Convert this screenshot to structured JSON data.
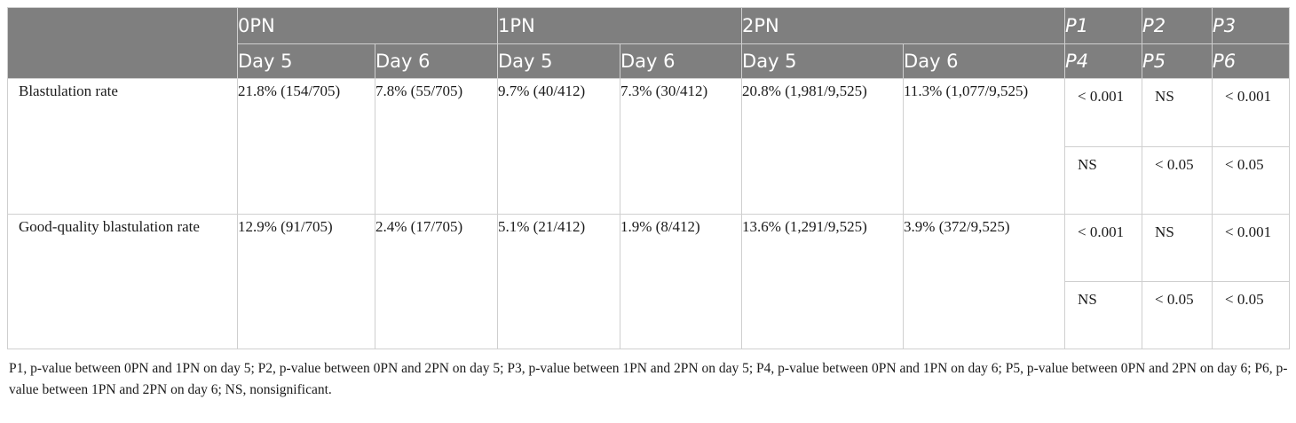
{
  "table": {
    "header": {
      "groups": [
        "0PN",
        "1PN",
        "2PN"
      ],
      "days": [
        "Day 5",
        "Day 6"
      ],
      "p_top": [
        "P1",
        "P2",
        "P3"
      ],
      "p_bottom": [
        "P4",
        "P5",
        "P6"
      ]
    },
    "rows": [
      {
        "label": "Blastulation rate",
        "values": [
          "21.8% (154/705)",
          "7.8% (55/705)",
          "9.7% (40/412)",
          "7.3% (30/412)",
          "20.8% (1,981/9,525)",
          "11.3% (1,077/9,525)"
        ],
        "p_top": [
          "< 0.001",
          "NS",
          "< 0.001"
        ],
        "p_bottom": [
          "NS",
          "< 0.05",
          "< 0.05"
        ]
      },
      {
        "label": "Good-quality blastulation rate",
        "values": [
          "12.9% (91/705)",
          "2.4% (17/705)",
          "5.1% (21/412)",
          "1.9% (8/412)",
          "13.6% (1,291/9,525)",
          "3.9% (372/9,525)"
        ],
        "p_top": [
          "< 0.001",
          "NS",
          "< 0.001"
        ],
        "p_bottom": [
          "NS",
          "< 0.05",
          "< 0.05"
        ]
      }
    ],
    "footnote": "P1, p-value between 0PN and 1PN on day 5; P2, p-value between 0PN and 2PN on day 5; P3, p-value between 1PN and 2PN on day 5; P4, p-value between 0PN and 1PN on day 6; P5, p-value between 0PN and 2PN on day 6; P6, p-value between 1PN and 2PN on day 6; NS, nonsignificant."
  }
}
